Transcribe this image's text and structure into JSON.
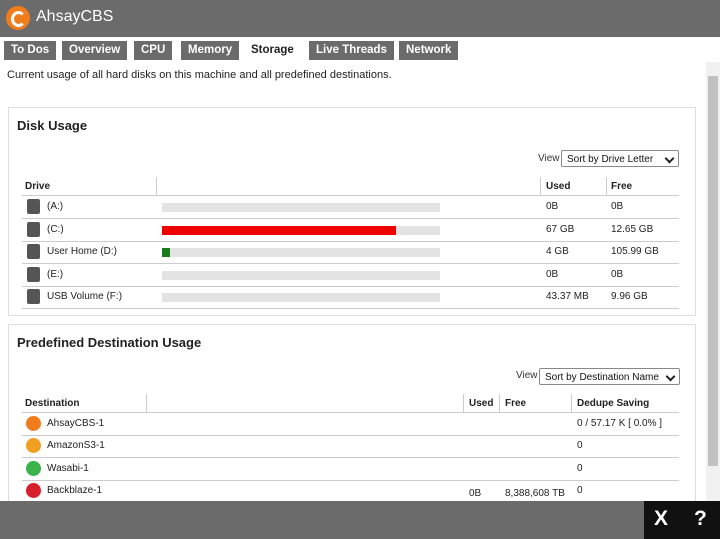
{
  "app": {
    "title": "AhsayCBS"
  },
  "tabs": [
    "To Dos",
    "Overview",
    "CPU",
    "Memory",
    "Storage",
    "Live Threads",
    "Network"
  ],
  "active_tab": 4,
  "description": "Current usage of all hard disks on this machine and all predefined destinations.",
  "disk_usage": {
    "title": "Disk Usage",
    "view_label": "View",
    "sort": "Sort by Drive Letter",
    "columns": [
      "Drive",
      "Used",
      "Free"
    ],
    "rows": [
      {
        "drive": "(A:)",
        "usage": 0,
        "used": "0B",
        "free": "0B"
      },
      {
        "drive": "(C:)",
        "usage": 84,
        "bar_color": "#ee0000",
        "used": "67 GB",
        "free": "12.65 GB"
      },
      {
        "drive": "User Home (D:)",
        "usage": 3,
        "bar_color": "#1b7a1b",
        "used": "4 GB",
        "free": "105.99 GB"
      },
      {
        "drive": "(E:)",
        "usage": 0,
        "used": "0B",
        "free": "0B"
      },
      {
        "drive": "USB Volume (F:)",
        "usage": 0,
        "used": "43.37 MB",
        "free": "9.96 GB"
      }
    ]
  },
  "destination_usage": {
    "title": "Predefined Destination Usage",
    "view_label": "View",
    "sort": "Sort by Destination Name",
    "columns": [
      "Destination",
      "Used",
      "Free",
      "Dedupe Saving"
    ],
    "rows": [
      {
        "destination": "AhsayCBS-1",
        "dedupe": "0 / 57.17 K [ 0.0% ]"
      },
      {
        "destination": "AmazonS3-1",
        "dedupe": "0"
      },
      {
        "destination": "Wasabi-1",
        "dedupe": "0"
      },
      {
        "destination": "Backblaze-1",
        "used": "0B",
        "free": "8,388,608 TB",
        "dedupe": "0"
      }
    ]
  },
  "footer": {
    "close": "X",
    "help": "?"
  }
}
